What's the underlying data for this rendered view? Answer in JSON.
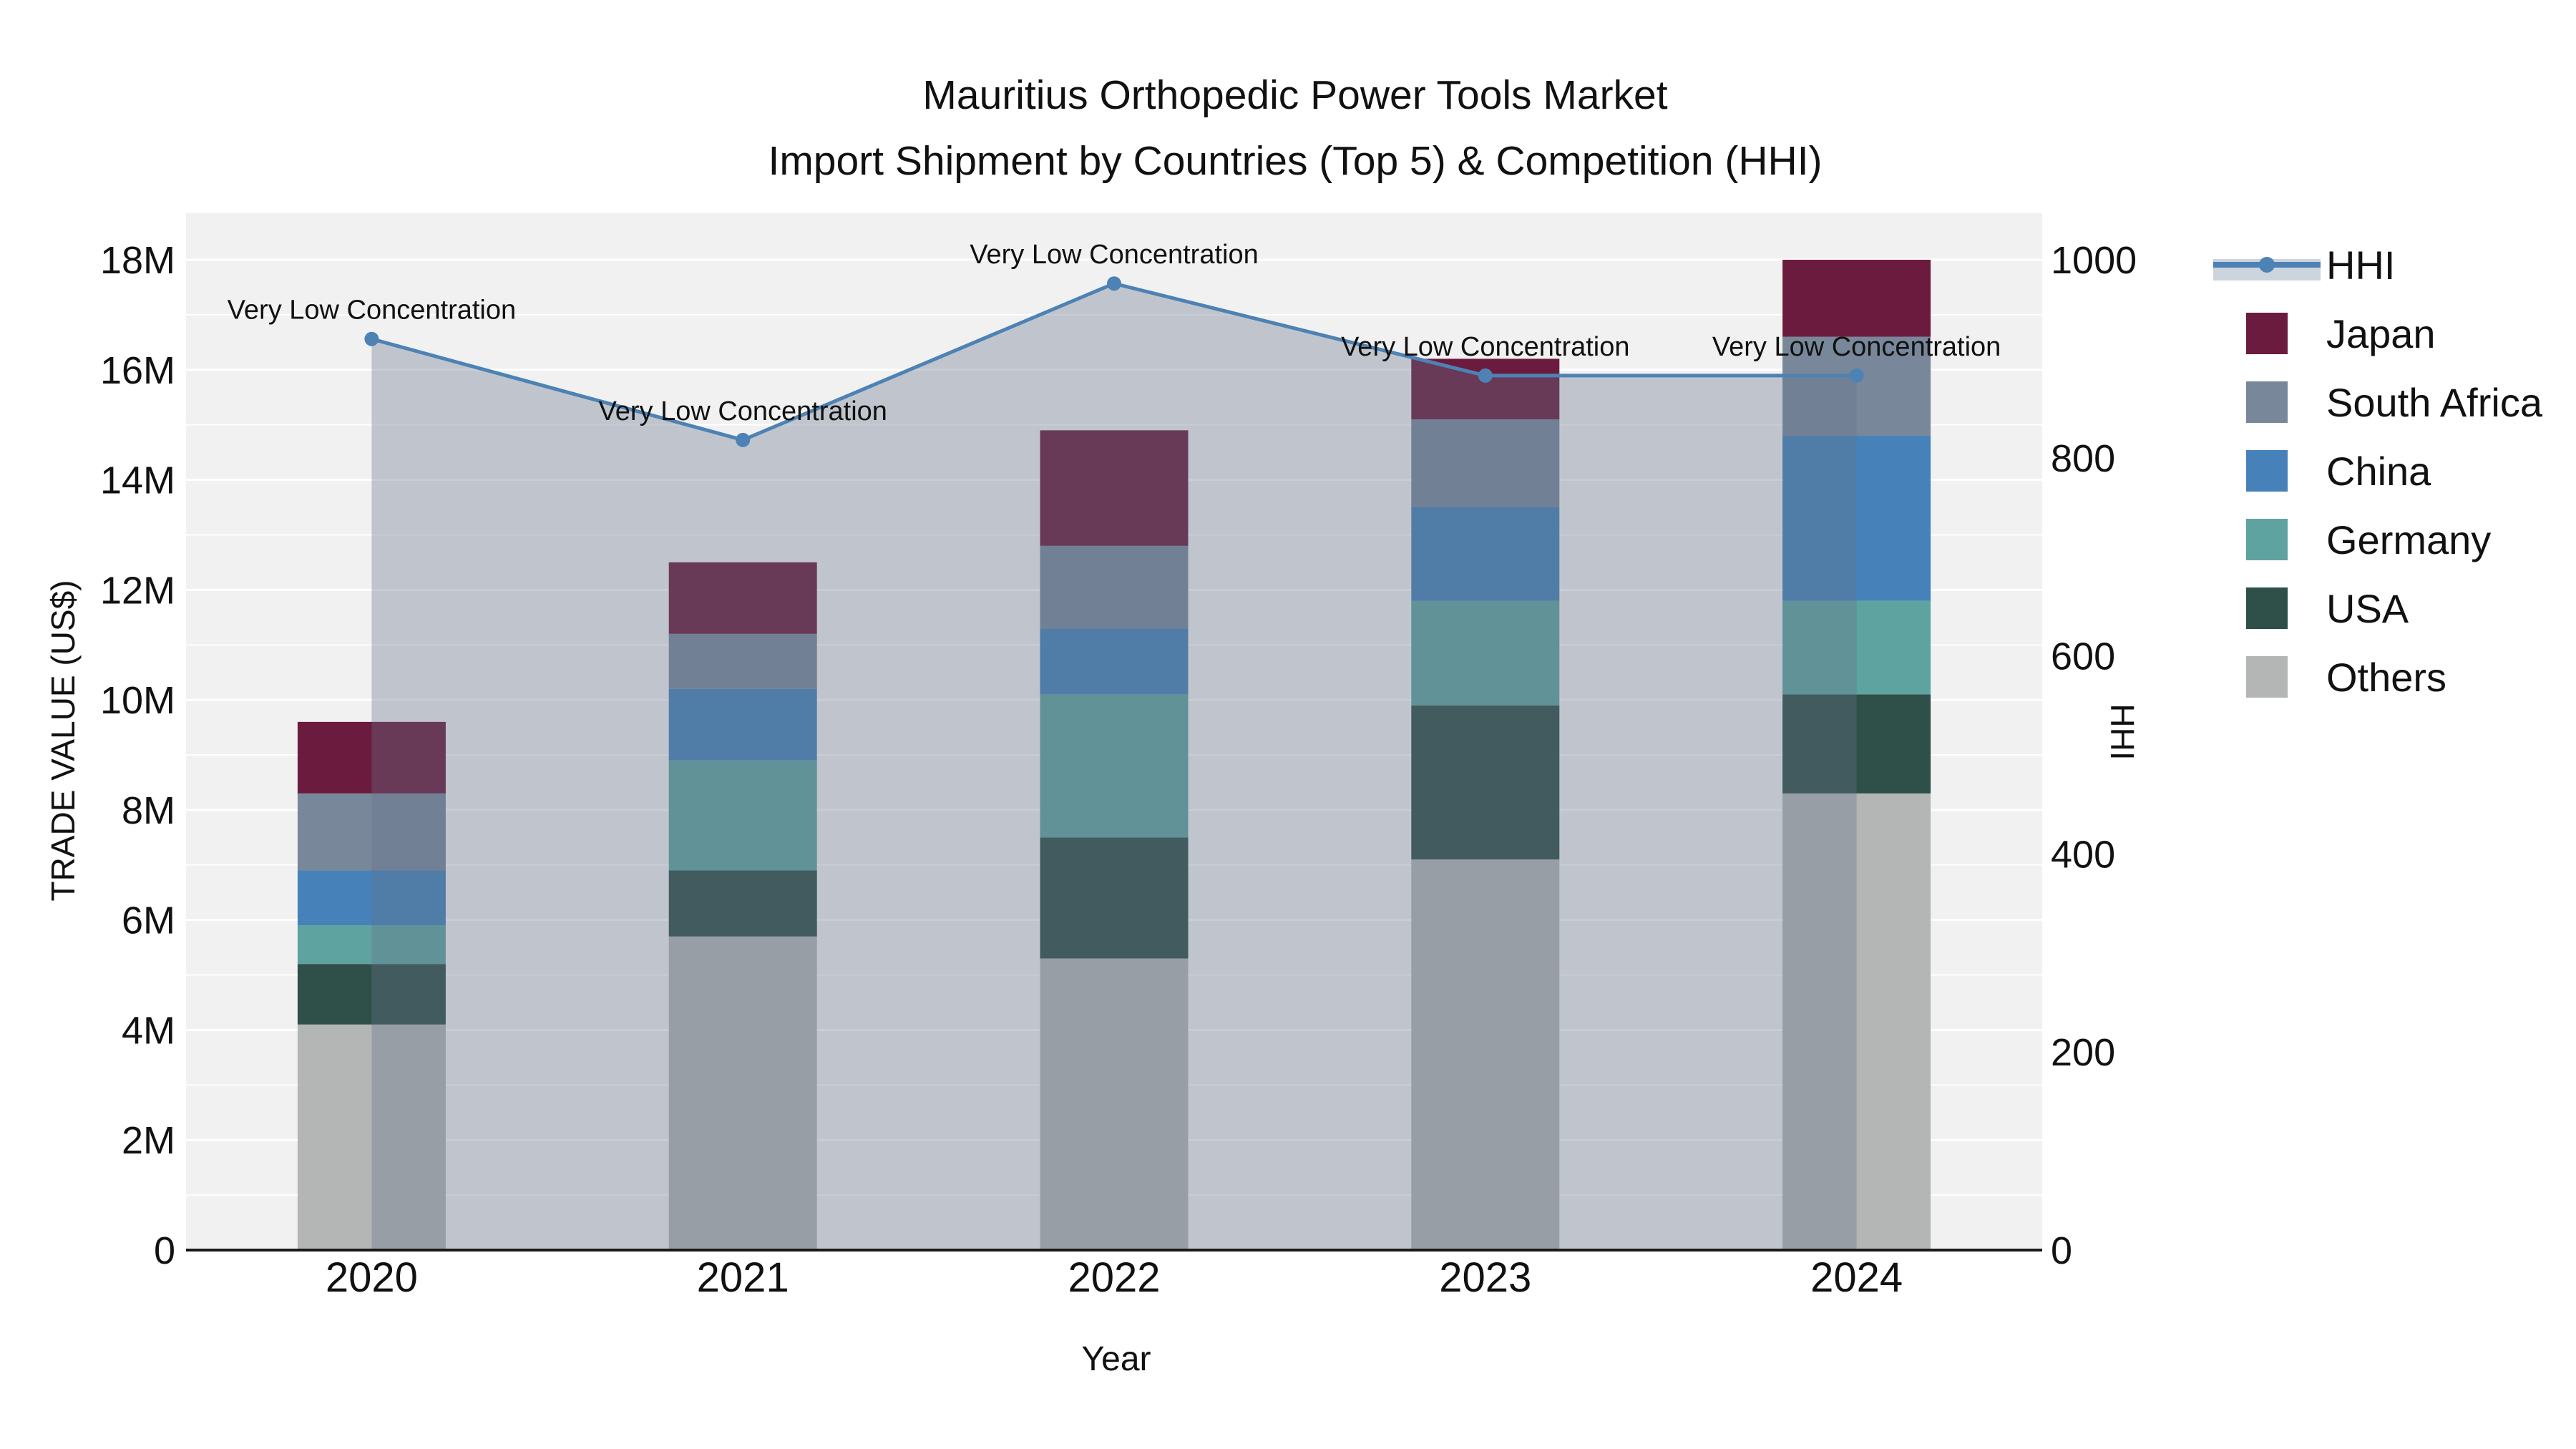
{
  "title": {
    "line1": "Mauritius Orthopedic Power Tools Market",
    "line2": "Import Shipment by Countries (Top 5) & Competition (HHI)"
  },
  "axes": {
    "x": {
      "title": "Year",
      "categories": [
        "2020",
        "2021",
        "2022",
        "2023",
        "2024"
      ]
    },
    "y_left": {
      "title": "TRADE VALUE (US$)",
      "tick_labels": [
        "0",
        "2M",
        "4M",
        "6M",
        "8M",
        "10M",
        "12M",
        "14M",
        "16M",
        "18M"
      ],
      "tick_step_m": 2,
      "axis_max_m": 18
    },
    "y_right": {
      "title": "HHI",
      "tick_labels": [
        "0",
        "200",
        "400",
        "600",
        "800",
        "1000"
      ],
      "tick_step": 200,
      "axis_max": 1000
    }
  },
  "legend": {
    "items": [
      {
        "label": "HHI",
        "swatch": "line",
        "color": "#4d82b4",
        "band_color": "#ccd4de"
      },
      {
        "label": "Japan",
        "swatch": "square",
        "color": "#6b1c3e"
      },
      {
        "label": "South Africa",
        "swatch": "square",
        "color": "#78889a"
      },
      {
        "label": "China",
        "swatch": "square",
        "color": "#4682b9"
      },
      {
        "label": "Germany",
        "swatch": "square",
        "color": "#5fa3a0"
      },
      {
        "label": "USA",
        "swatch": "square",
        "color": "#2f4f49"
      },
      {
        "label": "Others",
        "swatch": "square",
        "color": "#b3b6b5"
      }
    ]
  },
  "colors": {
    "plot_bg": "#f1f1f1",
    "grid": "#ffffff",
    "axis_line": "#1a1a1a",
    "hhi_line": "#4d82b4",
    "hhi_area_fill": "rgba(100,115,138,0.35)",
    "text": "#111111"
  },
  "chart_data": {
    "type": "bar",
    "stacked": true,
    "title": "Mauritius Orthopedic Power Tools Market — Import Shipment by Countries (Top 5) & Competition (HHI)",
    "categories": [
      "2020",
      "2021",
      "2022",
      "2023",
      "2024"
    ],
    "values_unit": "USD millions (left axis, M = million)",
    "series": [
      {
        "name": "Others",
        "color": "#b3b6b5",
        "values": [
          4.1,
          5.7,
          5.3,
          7.1,
          8.3
        ]
      },
      {
        "name": "USA",
        "color": "#2f4f49",
        "values": [
          1.1,
          1.2,
          2.2,
          2.8,
          1.8
        ]
      },
      {
        "name": "Germany",
        "color": "#5fa3a0",
        "values": [
          0.7,
          2.0,
          2.6,
          1.9,
          1.7
        ]
      },
      {
        "name": "China",
        "color": "#4682b9",
        "values": [
          1.0,
          1.3,
          1.2,
          1.7,
          3.0
        ]
      },
      {
        "name": "South Africa",
        "color": "#78889a",
        "values": [
          1.4,
          1.0,
          1.5,
          1.6,
          1.8
        ]
      },
      {
        "name": "Japan",
        "color": "#6b1c3e",
        "values": [
          1.3,
          1.3,
          2.1,
          1.1,
          1.4
        ]
      }
    ],
    "stack_totals_m": [
      9.6,
      12.5,
      14.9,
      16.2,
      18.0
    ],
    "line_series": {
      "name": "HHI",
      "yaxis": "right",
      "color": "#4d82b4",
      "area_fill": "rgba(100,115,138,0.35)",
      "values": [
        920,
        818,
        976,
        883,
        883
      ]
    },
    "annotations": [
      "Very Low Concentration",
      "Very Low Concentration",
      "Very Low Concentration",
      "Very Low Concentration",
      "Very Low Concentration"
    ],
    "xlabel": "Year",
    "ylabel_left": "TRADE VALUE (US$)",
    "ylabel_right": "HHI",
    "y_left_range_m": [
      0,
      18
    ],
    "y_right_range": [
      0,
      1000
    ],
    "grid": true,
    "legend_position": "right"
  }
}
